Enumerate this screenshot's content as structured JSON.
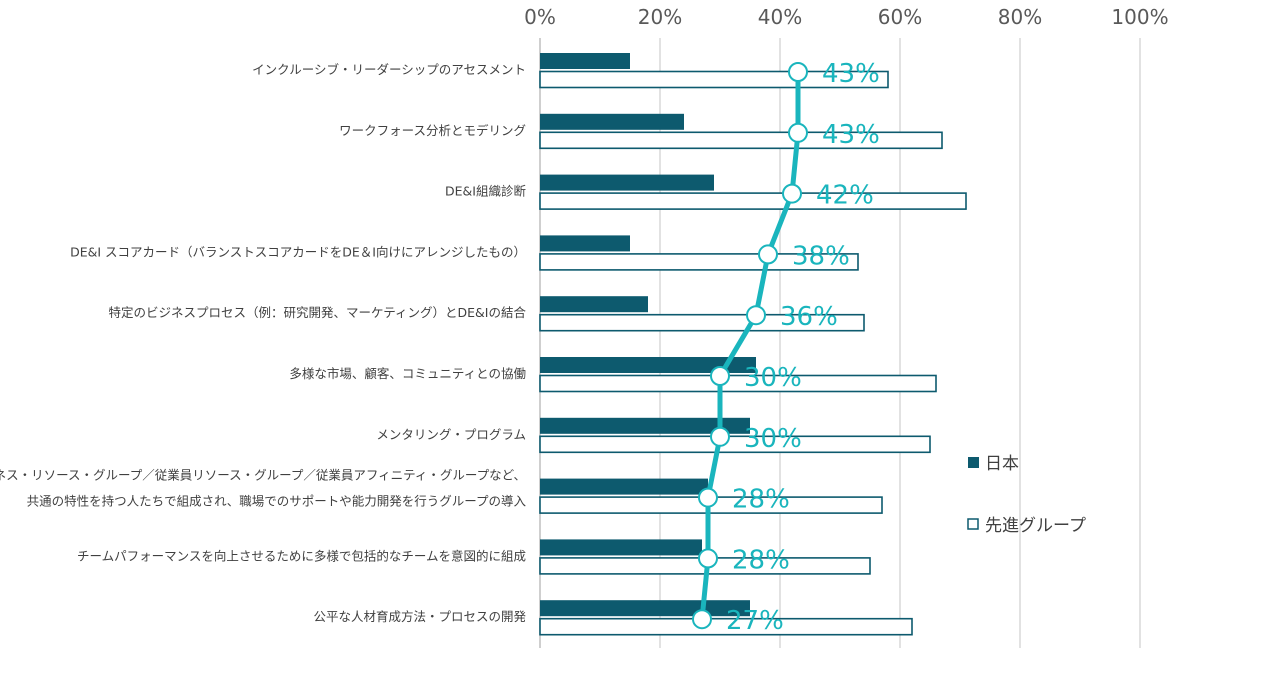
{
  "chart_data": {
    "type": "bar",
    "orientation": "horizontal",
    "categories": [
      [
        "インクルーシブ・リーダーシップのアセスメント"
      ],
      [
        "ワークフォース分析とモデリング"
      ],
      [
        "DE&I組織診断"
      ],
      [
        "DE&I スコアカード（バランストスコアカードをDE＆I向けにアレンジしたもの）"
      ],
      [
        "特定のビジネスプロセス（例：研究開発、マーケティング）とDE&Iの結合"
      ],
      [
        "多様な市場、顧客、コミュニティとの協働"
      ],
      [
        "メンタリング・プログラム"
      ],
      [
        "ビジネス・リソース・グループ／従業員リソース・グループ／従業員アフィニティ・グループなど、",
        "共通の特性を持つ人たちで組成され、職場でのサポートや能力開発を行うグループの導入"
      ],
      [
        "チームパフォーマンスを向上させるために多様で包括的なチームを意図的に組成"
      ],
      [
        "公平な人材育成方法・プロセスの開発"
      ]
    ],
    "series": [
      {
        "name": "日本",
        "style": "filled",
        "color": "#0d5a6e",
        "values": [
          15,
          24,
          29,
          15,
          18,
          36,
          35,
          28,
          27,
          35
        ]
      },
      {
        "name": "先進グループ",
        "style": "outline",
        "color": "#0d5a6e",
        "values": [
          58,
          67,
          71,
          53,
          54,
          66,
          65,
          57,
          55,
          62
        ]
      },
      {
        "name": "line",
        "type": "line",
        "color": "#1ab5bd",
        "values": [
          43,
          43,
          42,
          38,
          36,
          30,
          30,
          28,
          28,
          27
        ],
        "labels": [
          "43%",
          "43%",
          "42%",
          "38%",
          "36%",
          "30%",
          "30%",
          "28%",
          "28%",
          "27%"
        ]
      }
    ],
    "xticks": [
      "0%",
      "20%",
      "40%",
      "60%",
      "80%",
      "100%"
    ],
    "xlim": [
      0,
      100
    ],
    "grid": true,
    "legend": {
      "position": "right",
      "entries": [
        "日本",
        "先進グループ"
      ]
    }
  }
}
